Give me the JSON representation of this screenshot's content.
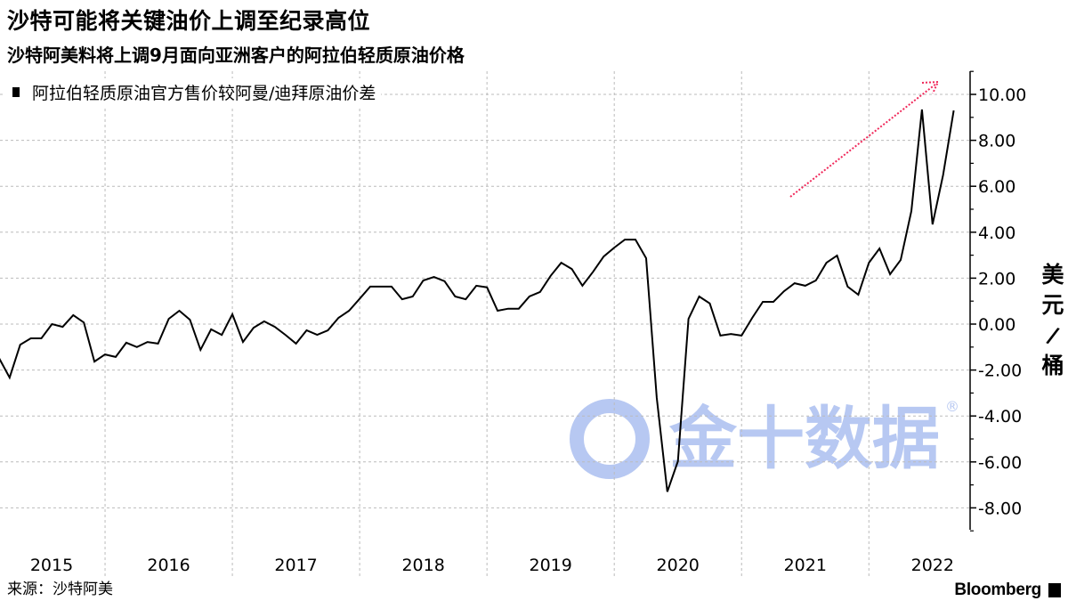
{
  "header": {
    "title": "沙特可能将关键油价上调至纪录高位",
    "subtitle": "沙特阿美料将上调9月面向亚洲客户的阿拉伯轻质原油价格"
  },
  "footer": {
    "source": "来源：沙特阿美",
    "brand": "Bloomberg"
  },
  "watermark": {
    "text": "金十数据",
    "registered": "®"
  },
  "colors": {
    "line": "#000000",
    "grid": "#bbbbbb",
    "annotation_arrow": "#f0285a",
    "watermark": "#b7c8f2"
  },
  "chart_data": {
    "type": "line",
    "title": "沙特可能将关键油价上调至纪录高位",
    "subtitle": "沙特阿美料将上调9月面向亚洲客户的阿拉伯轻质原油价格",
    "xlabel": "",
    "ylabel": "美元/桶",
    "y_axis_position": "right",
    "ylim": [
      -9,
      11
    ],
    "yticks": [
      -8,
      -6,
      -4,
      -2,
      0,
      2,
      4,
      6,
      8,
      10
    ],
    "ytick_labels": [
      "-8.00",
      "-6.00",
      "-4.00",
      "-2.00",
      "0.00",
      "2.00",
      "4.00",
      "6.00",
      "8.00",
      "10.00"
    ],
    "xtick_labels": [
      "2015",
      "2016",
      "2017",
      "2018",
      "2019",
      "2020",
      "2021",
      "2022"
    ],
    "grid": true,
    "legend_position": "top-left",
    "annotation": "upward dotted arrow (pink) near the 2021-2022 rise",
    "series": [
      {
        "name": "阿拉伯轻质原油官方售价较阿曼/迪拜原油价差",
        "points": [
          [
            "2015-03",
            -1.47
          ],
          [
            "2015-04",
            -2.33
          ],
          [
            "2015-05",
            -0.9
          ],
          [
            "2015-06",
            -0.62
          ],
          [
            "2015-07",
            -0.62
          ],
          [
            "2015-08",
            0.0
          ],
          [
            "2015-09",
            -0.12
          ],
          [
            "2015-10",
            0.39
          ],
          [
            "2015-11",
            0.07
          ],
          [
            "2015-12",
            -1.63
          ],
          [
            "2016-01",
            -1.32
          ],
          [
            "2016-02",
            -1.43
          ],
          [
            "2016-03",
            -0.81
          ],
          [
            "2016-04",
            -1.0
          ],
          [
            "2016-05",
            -0.78
          ],
          [
            "2016-06",
            -0.85
          ],
          [
            "2016-07",
            0.23
          ],
          [
            "2016-08",
            0.58
          ],
          [
            "2016-09",
            0.19
          ],
          [
            "2016-10",
            -1.12
          ],
          [
            "2016-11",
            -0.23
          ],
          [
            "2016-12",
            -0.47
          ],
          [
            "2017-01",
            0.43
          ],
          [
            "2017-02",
            -0.78
          ],
          [
            "2017-03",
            -0.16
          ],
          [
            "2017-04",
            0.12
          ],
          [
            "2017-05",
            -0.12
          ],
          [
            "2017-06",
            -0.47
          ],
          [
            "2017-07",
            -0.85
          ],
          [
            "2017-08",
            -0.27
          ],
          [
            "2017-09",
            -0.47
          ],
          [
            "2017-10",
            -0.27
          ],
          [
            "2017-11",
            0.27
          ],
          [
            "2017-12",
            0.58
          ],
          [
            "2018-01",
            1.1
          ],
          [
            "2018-02",
            1.63
          ],
          [
            "2018-03",
            1.63
          ],
          [
            "2018-04",
            1.63
          ],
          [
            "2018-05",
            1.08
          ],
          [
            "2018-06",
            1.2
          ],
          [
            "2018-07",
            1.9
          ],
          [
            "2018-08",
            2.05
          ],
          [
            "2018-09",
            1.87
          ],
          [
            "2018-10",
            1.2
          ],
          [
            "2018-11",
            1.08
          ],
          [
            "2018-12",
            1.67
          ],
          [
            "2019-01",
            1.6
          ],
          [
            "2019-02",
            0.58
          ],
          [
            "2019-03",
            0.67
          ],
          [
            "2019-04",
            0.67
          ],
          [
            "2019-05",
            1.2
          ],
          [
            "2019-06",
            1.4
          ],
          [
            "2019-07",
            2.1
          ],
          [
            "2019-08",
            2.67
          ],
          [
            "2019-09",
            2.4
          ],
          [
            "2019-10",
            1.67
          ],
          [
            "2019-11",
            2.28
          ],
          [
            "2019-12",
            2.94
          ],
          [
            "2020-01",
            3.33
          ],
          [
            "2020-02",
            3.68
          ],
          [
            "2020-03",
            3.68
          ],
          [
            "2020-04",
            2.87
          ],
          [
            "2020-05",
            -3.2
          ],
          [
            "2020-06",
            -7.3
          ],
          [
            "2020-07",
            -5.97
          ],
          [
            "2020-08",
            0.23
          ],
          [
            "2020-09",
            1.2
          ],
          [
            "2020-10",
            0.9
          ],
          [
            "2020-11",
            -0.5
          ],
          [
            "2020-12",
            -0.43
          ],
          [
            "2021-01",
            -0.5
          ],
          [
            "2021-02",
            0.27
          ],
          [
            "2021-03",
            0.97
          ],
          [
            "2021-04",
            0.97
          ],
          [
            "2021-05",
            1.43
          ],
          [
            "2021-06",
            1.78
          ],
          [
            "2021-07",
            1.67
          ],
          [
            "2021-08",
            1.9
          ],
          [
            "2021-09",
            2.67
          ],
          [
            "2021-10",
            2.98
          ],
          [
            "2021-11",
            1.63
          ],
          [
            "2021-12",
            1.28
          ],
          [
            "2022-01",
            2.67
          ],
          [
            "2022-02",
            3.29
          ],
          [
            "2022-03",
            2.17
          ],
          [
            "2022-04",
            2.79
          ],
          [
            "2022-05",
            4.92
          ],
          [
            "2022-06",
            9.34
          ],
          [
            "2022-07",
            4.34
          ],
          [
            "2022-08",
            6.5
          ],
          [
            "2022-09",
            9.3
          ]
        ]
      }
    ]
  }
}
